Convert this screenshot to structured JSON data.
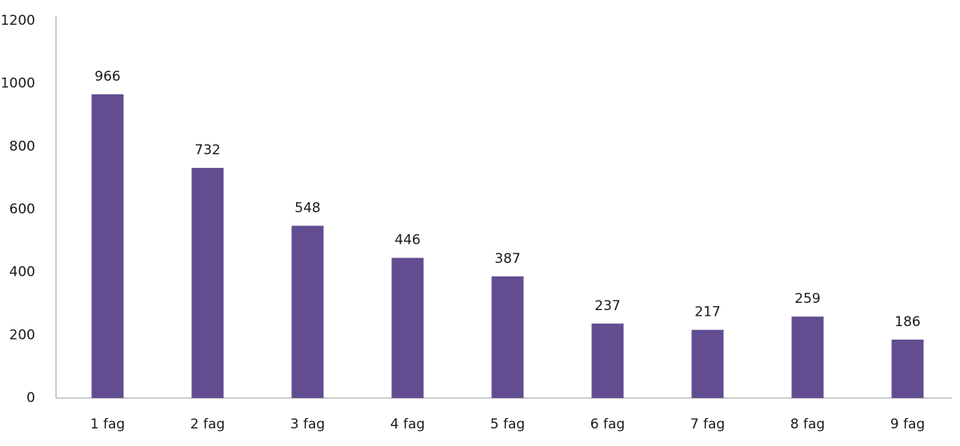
{
  "chart_data": {
    "type": "bar",
    "categories": [
      "1 fag",
      "2 fag",
      "3 fag",
      "4 fag",
      "5 fag",
      "6 fag",
      "7 fag",
      "8 fag",
      "9 fag"
    ],
    "values": [
      966,
      732,
      548,
      446,
      387,
      237,
      217,
      259,
      186
    ],
    "color": "#634d91",
    "ylim": [
      0,
      1200
    ],
    "yticks": [
      0,
      200,
      400,
      600,
      800,
      1000,
      1200
    ],
    "grid": false
  }
}
